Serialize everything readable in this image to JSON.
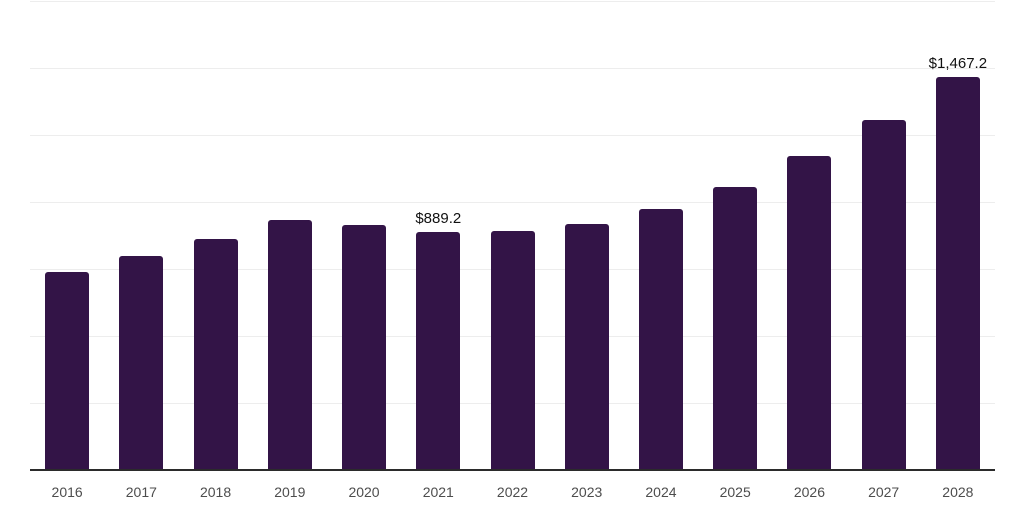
{
  "chart_data": {
    "type": "bar",
    "title": "",
    "xlabel": "",
    "ylabel": "",
    "categories": [
      "2016",
      "2017",
      "2018",
      "2019",
      "2020",
      "2021",
      "2022",
      "2023",
      "2024",
      "2025",
      "2026",
      "2027",
      "2028"
    ],
    "values": [
      740,
      799,
      861,
      934,
      915,
      889.2,
      891,
      918,
      973,
      1057,
      1171,
      1306,
      1467.2
    ],
    "data_labels": [
      "",
      "",
      "",
      "",
      "",
      "$889.2",
      "",
      "",
      "",
      "",
      "",
      "",
      "$1,467.2"
    ],
    "ylim": [
      0,
      1750
    ],
    "gridline_step": 250,
    "grid": true,
    "legend_position": "none",
    "y_axis_labels_visible": false,
    "bar_color": "#331447",
    "gridline_color": "#ededed",
    "axis_line_color": "#2b2b2b",
    "tick_label_color": "#4d4d4d",
    "data_label_color": "#111111"
  }
}
